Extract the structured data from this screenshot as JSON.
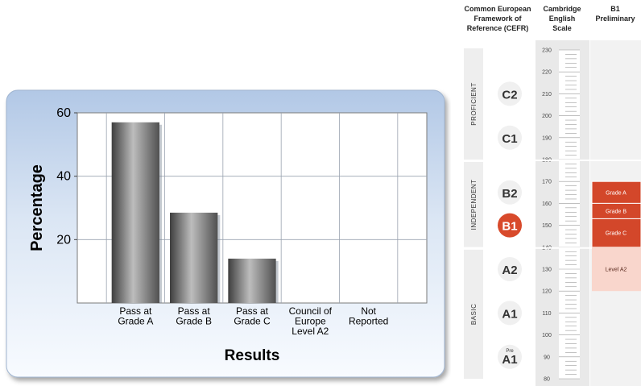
{
  "chart_data": {
    "type": "bar",
    "categories": [
      "Pass at Grade A",
      "Pass at Grade B",
      "Pass at Grade C",
      "Council of Europe Level A2",
      "Not Reported"
    ],
    "category_lines": [
      [
        "Pass at",
        "Grade A"
      ],
      [
        "Pass at",
        "Grade B"
      ],
      [
        "Pass at",
        "Grade C"
      ],
      [
        "Council of",
        "Europe",
        "Level A2"
      ],
      [
        "Not",
        "Reported"
      ]
    ],
    "values": [
      57,
      28.5,
      14,
      0,
      0
    ],
    "xlabel": "Results",
    "ylabel": "Percentage",
    "ylim": [
      0,
      60
    ],
    "yticks": [
      20,
      40,
      60
    ],
    "grid": true,
    "legend": "none"
  },
  "cefr_scale": {
    "headers": {
      "cefr": [
        "Common European",
        "Framework of",
        "Reference (CEFR)"
      ],
      "cambridge": [
        "Cambridge",
        "English",
        "Scale"
      ],
      "exam": [
        "B1",
        "Preliminary"
      ]
    },
    "bands": [
      {
        "label": "PROFICIENT",
        "levels": [
          "C2",
          "C1"
        ]
      },
      {
        "label": "INDEPENDENT",
        "levels": [
          "B2",
          "B1"
        ]
      },
      {
        "label": "BASIC",
        "levels": [
          "A2",
          "A1",
          "Pre A1"
        ]
      }
    ],
    "levels": [
      {
        "code": "C2",
        "sup": "",
        "highlight": false
      },
      {
        "code": "C1",
        "sup": "",
        "highlight": false
      },
      {
        "code": "B2",
        "sup": "",
        "highlight": false
      },
      {
        "code": "B1",
        "sup": "",
        "highlight": true
      },
      {
        "code": "A2",
        "sup": "",
        "highlight": false
      },
      {
        "code": "A1",
        "sup": "",
        "highlight": false
      },
      {
        "code": "A1",
        "sup": "Pre",
        "highlight": false
      }
    ],
    "scale": {
      "min": 80,
      "max": 230,
      "labels": [
        230,
        220,
        210,
        200,
        190,
        180,
        170,
        160,
        150,
        140,
        130,
        120,
        110,
        100,
        90,
        80
      ]
    },
    "grades": [
      {
        "label": "Grade A",
        "from": 160,
        "to": 170
      },
      {
        "label": "Grade B",
        "from": 153,
        "to": 160
      },
      {
        "label": "Grade C",
        "from": 140,
        "to": 153
      },
      {
        "label": "Level A2",
        "from": 120,
        "to": 140
      }
    ],
    "colors": {
      "grade": "#d3472a",
      "level_a2": "#f9d6cc",
      "b1_badge": "#d84a2b",
      "band": "#eeeeee"
    }
  }
}
